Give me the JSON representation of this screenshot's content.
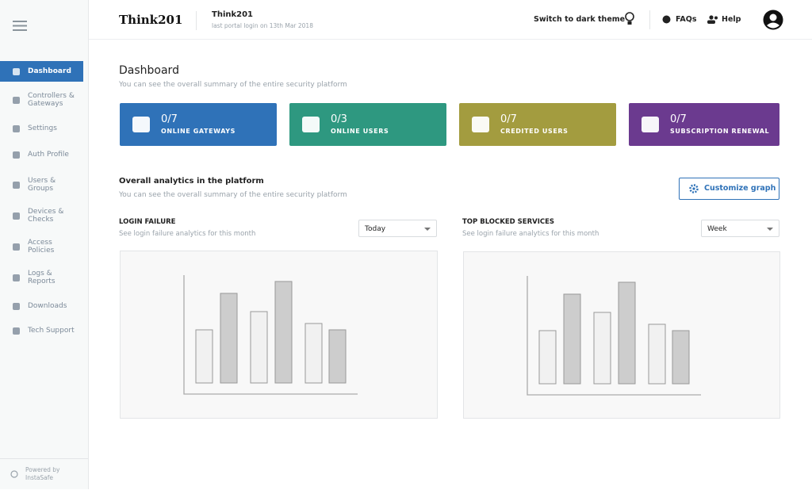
{
  "header": {
    "logo": "Think201",
    "app_name": "Think201",
    "last_login": "last portal login on 13th Mar 2018",
    "theme_toggle": "Switch to dark theme",
    "faqs": "FAQs",
    "help": "Help"
  },
  "sidebar": {
    "nav": [
      {
        "lines": [
          "Dashboard"
        ],
        "active": true
      },
      {
        "lines": [
          "Controllers &",
          "Gateways"
        ]
      },
      {
        "lines": [
          "Settings"
        ]
      },
      {
        "lines": [
          "Auth Profile"
        ]
      },
      {
        "lines": [
          "Users &",
          "Groups"
        ]
      },
      {
        "lines": [
          "Devices &",
          "Checks"
        ]
      },
      {
        "lines": [
          "Access",
          "Policies"
        ]
      },
      {
        "lines": [
          "Logs &",
          "Reports"
        ]
      },
      {
        "lines": [
          "Downloads"
        ]
      },
      {
        "lines": [
          "Tech Support"
        ]
      }
    ],
    "footer": [
      "Powered by",
      "InstaSafe"
    ]
  },
  "page": {
    "title": "Dashboard",
    "subtitle": "You can see the overall summary of the entire security platform"
  },
  "cards": [
    {
      "value": "0/7",
      "label": "ONLINE GATEWAYS",
      "color": "#2f72b8"
    },
    {
      "value": "0/3",
      "label": "ONLINE USERS",
      "color": "#2e9880"
    },
    {
      "value": "0/7",
      "label": "CREDITED USERS",
      "color": "#a39c3f"
    },
    {
      "value": "0/7",
      "label": "SUBSCRIPTION RENEWAL",
      "color": "#6b3a8f"
    }
  ],
  "analytics": {
    "title": "Overall analytics in the platform",
    "subtitle": "You can see the overall summary of the entire security platform",
    "button": "Customize graph",
    "panels": [
      {
        "title": "LOGIN FAILURE",
        "subtitle": "See login failure analytics for this month",
        "filter": "Today"
      },
      {
        "title": "TOP BLOCKED SERVICES",
        "subtitle": "See login failure analytics for this month",
        "filter": "Week"
      }
    ]
  }
}
